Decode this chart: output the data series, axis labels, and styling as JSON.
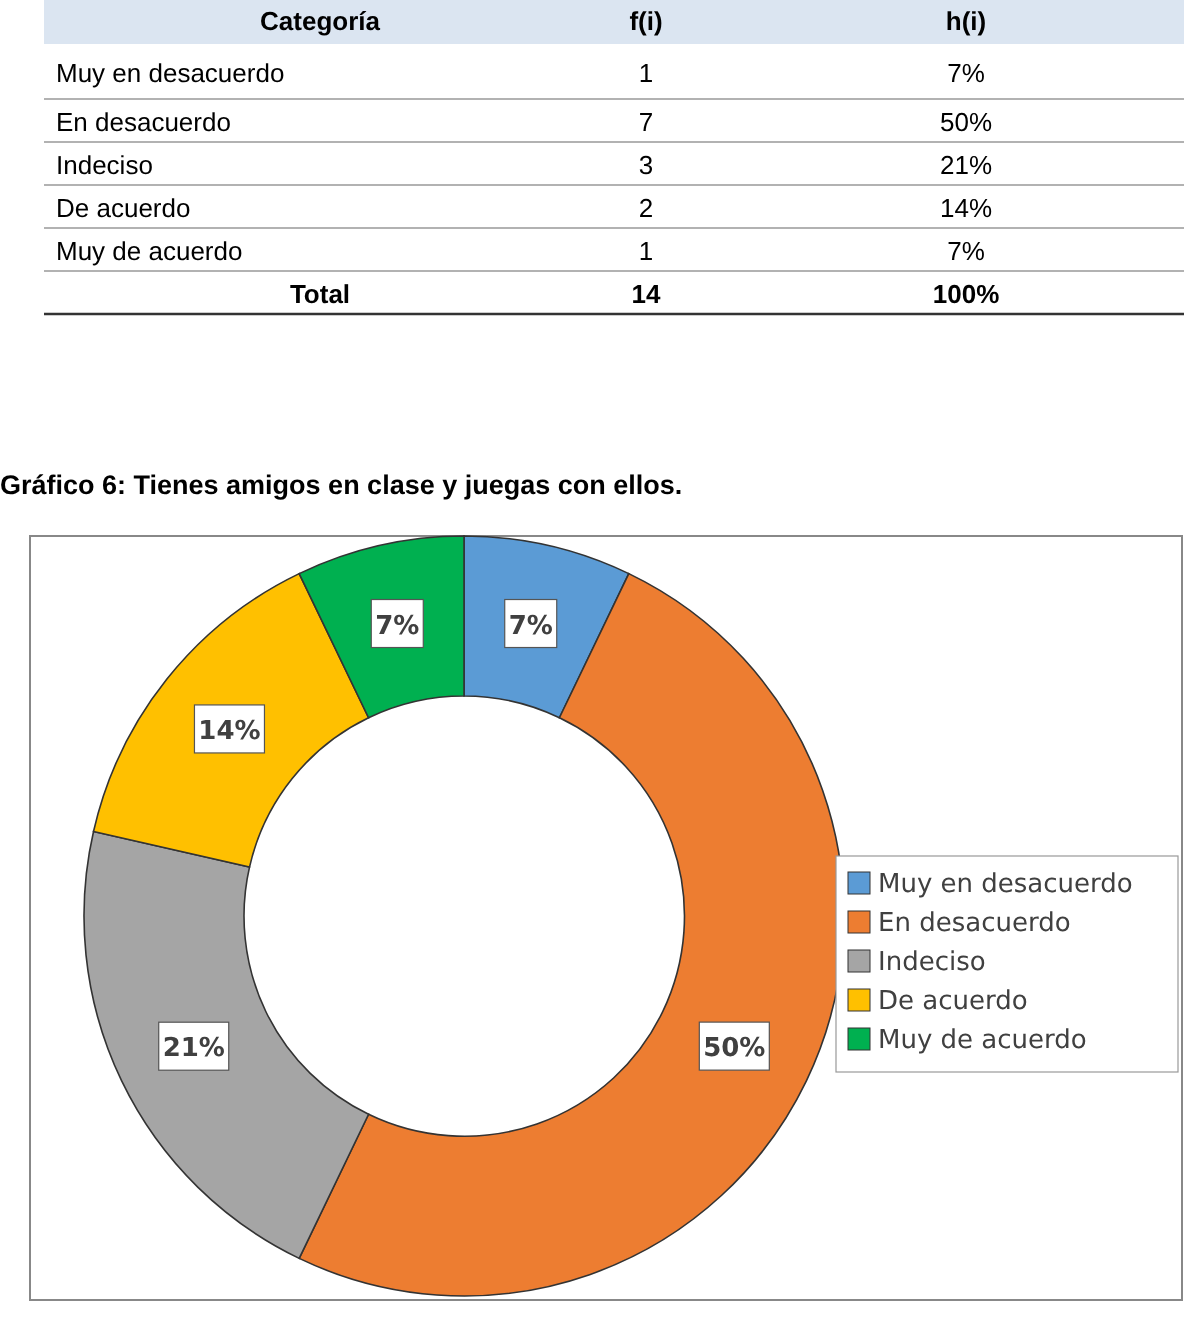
{
  "chart_data": [
    {
      "type": "other",
      "xlabel": "Categoría",
      "data_labels": true,
      "categories": [
        "Muy en desacuerdo",
        "En desacuerdo",
        "Indeciso",
        "De acuerdo",
        "Muy de acuerdo",
        "Total"
      ],
      "series": [
        {
          "name": "f(i)",
          "values": [
            1,
            7,
            3,
            2,
            1,
            14
          ]
        },
        {
          "name": "h(i)",
          "values": [
            7,
            50,
            21,
            14,
            7,
            100
          ],
          "value_labels": [
            "7%",
            "50%",
            "21%",
            "14%",
            "7%",
            "100%"
          ]
        }
      ]
    },
    {
      "type": "donut",
      "title": "Gráfico 6: Tienes amigos en clase y juegas con ellos.",
      "categories": [
        "Muy en desacuerdo",
        "En desacuerdo",
        "Indeciso",
        "De acuerdo",
        "Muy de acuerdo"
      ],
      "values": [
        7.14,
        50,
        21.43,
        14.29,
        7.14
      ],
      "value_labels": [
        "7%",
        "50%",
        "21%",
        "14%",
        "7%"
      ],
      "colors": [
        "#5b9bd5",
        "#ed7d31",
        "#a5a5a5",
        "#ffc000",
        "#00b050"
      ],
      "legend": "right"
    }
  ]
}
